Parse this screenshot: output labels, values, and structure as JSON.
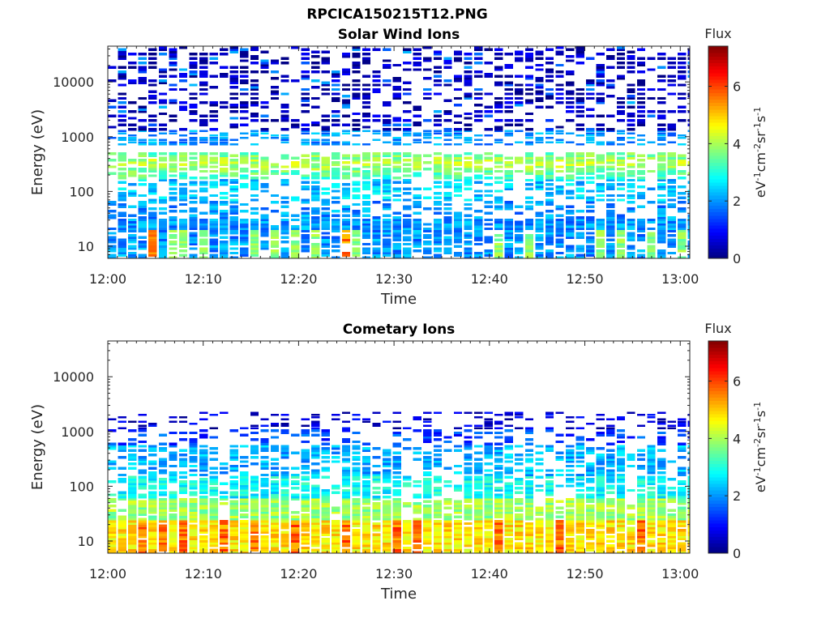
{
  "figure_title": "RPCICA150215T12.PNG",
  "chart_data": [
    {
      "type": "heatmap",
      "title": "Solar Wind Ions",
      "xlabel": "Time",
      "ylabel": "Energy (eV)",
      "x_ticks": [
        "12:00",
        "12:10",
        "12:20",
        "12:30",
        "12:40",
        "12:50",
        "13:00"
      ],
      "x_range": [
        "12:00",
        "13:01"
      ],
      "y_scale": "log",
      "y_ticks": [
        "10",
        "100",
        "1000",
        "10000"
      ],
      "y_range": [
        6,
        45000
      ],
      "colorbar": {
        "label": "eV-1cm-2sr-1s-1",
        "title": "Flux",
        "range": [
          0,
          7.4
        ],
        "ticks": [
          "0",
          "2",
          "4",
          "6"
        ],
        "colormap": "jet"
      },
      "time_step_s": 64,
      "energy_bins": 96,
      "bands": [
        {
          "e_lo": 20,
          "e_hi": 33,
          "flux": 2.0,
          "fill": 1.0
        },
        {
          "e_lo": 6,
          "e_hi": 20,
          "flux": 2.0,
          "fill": 0.75,
          "bright": [
            4,
            6,
            7,
            9,
            14,
            16,
            18,
            20,
            23,
            24,
            38,
            41,
            48,
            50,
            53,
            56,
            59,
            62,
            65,
            66,
            69,
            73,
            76,
            79,
            86,
            90,
            93
          ],
          "hot": [
            4,
            23,
            59,
            65,
            76
          ]
        },
        {
          "e_lo": 33,
          "e_hi": 70,
          "flux": 2.0,
          "fill": 0.45
        },
        {
          "e_lo": 70,
          "e_hi": 170,
          "flux": 2.4,
          "fill": 0.5
        },
        {
          "e_lo": 170,
          "e_hi": 500,
          "flux": 3.2,
          "fill": 0.72,
          "peak": 330
        },
        {
          "e_lo": 700,
          "e_hi": 1300,
          "flux": 2.0,
          "fill": 0.55,
          "thin": true
        },
        {
          "e_lo": 1300,
          "e_hi": 45000,
          "flux": 0.4,
          "fill": 0.55,
          "sparse": true
        }
      ]
    },
    {
      "type": "heatmap",
      "title": "Cometary Ions",
      "xlabel": "Time",
      "ylabel": "Energy (eV)",
      "x_ticks": [
        "12:00",
        "12:10",
        "12:20",
        "12:30",
        "12:40",
        "12:50",
        "13:00"
      ],
      "x_range": [
        "12:00",
        "13:01"
      ],
      "y_scale": "log",
      "y_ticks": [
        "10",
        "100",
        "1000",
        "10000"
      ],
      "y_range": [
        6,
        45000
      ],
      "colorbar": {
        "label": "eV-1cm-2sr-1s-1",
        "title": "Flux",
        "range": [
          0,
          7.4
        ],
        "ticks": [
          "0",
          "2",
          "4",
          "6"
        ],
        "colormap": "jet"
      },
      "time_step_s": 64,
      "energy_bins": 96,
      "bands": [
        {
          "e_lo": 6,
          "e_hi": 25,
          "flux": 4.8,
          "fill": 0.95,
          "hot": [
            3,
            5,
            7,
            11,
            14,
            18,
            23,
            28,
            30,
            38,
            44,
            52,
            61,
            70,
            80,
            86,
            92
          ]
        },
        {
          "e_lo": 25,
          "e_hi": 60,
          "flux": 3.9,
          "fill": 0.95
        },
        {
          "e_lo": 60,
          "e_hi": 150,
          "flux": 2.8,
          "fill": 0.8
        },
        {
          "e_lo": 150,
          "e_hi": 550,
          "flux": 2.2,
          "fill": 0.6
        },
        {
          "e_lo": 550,
          "e_hi": 1100,
          "flux": 1.4,
          "fill": 0.35
        },
        {
          "e_lo": 1100,
          "e_hi": 2300,
          "flux": 0.6,
          "fill": 0.35,
          "thin": true
        },
        {
          "e_lo": 3500,
          "e_hi": 4200,
          "flux": 0.8,
          "fill": 0.02,
          "thin": true
        }
      ]
    }
  ]
}
